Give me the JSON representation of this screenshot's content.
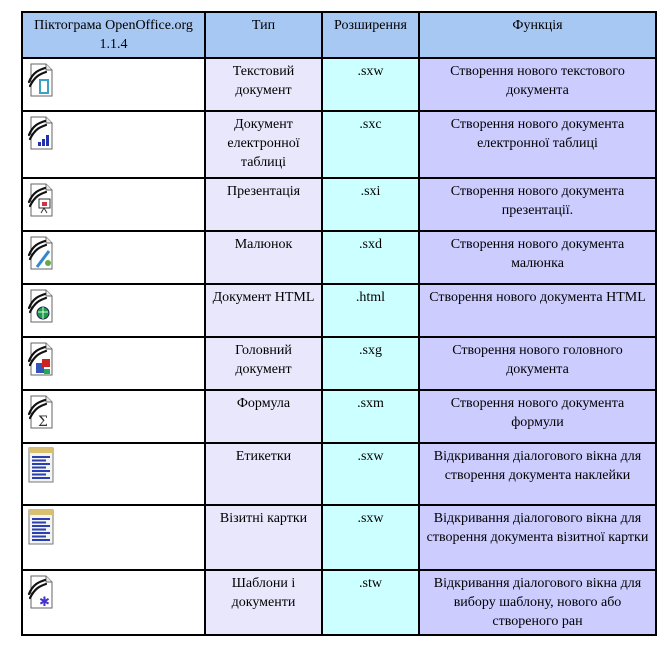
{
  "table": {
    "headers": [
      "Піктограма OpenOffice.org 1.1.4",
      "Тип",
      "Розширення",
      "Функція"
    ],
    "rows": [
      {
        "icon": "text-document-icon",
        "type": "Текстовий документ",
        "ext": ".sxw",
        "func": "Створення нового текстового документа",
        "accent": "#3aa0c8"
      },
      {
        "icon": "spreadsheet-icon",
        "type": "Документ електронної таблиці",
        "ext": ".sxc",
        "func": "Створення нового документа електронної таблиці",
        "accent": "#2233aa"
      },
      {
        "icon": "presentation-icon",
        "type": "Презентація",
        "ext": ".sxi",
        "func": "Створення нового документа презентації.",
        "accent": "#cc3344"
      },
      {
        "icon": "drawing-icon",
        "type": "Малюнок",
        "ext": ".sxd",
        "func": "Створення нового документа малюнка",
        "accent": "#3388cc"
      },
      {
        "icon": "html-document-icon",
        "type": "Документ HTML",
        "ext": ".html",
        "func": "Створення нового документа HTML",
        "accent": "#229944"
      },
      {
        "icon": "master-document-icon",
        "type": "Головний документ",
        "ext": ".sxg",
        "func": "Створення нового головного документа",
        "accent": "#cc2222"
      },
      {
        "icon": "formula-icon",
        "type": "Формула",
        "ext": ".sxm",
        "func": "Створення нового документа формули",
        "accent": "#333333"
      },
      {
        "icon": "labels-icon",
        "type": "Етикетки",
        "ext": ".sxw",
        "func": "Відкривання діалогового вікна для створення документа наклейки",
        "accent": "#2a3fb0"
      },
      {
        "icon": "business-cards-icon",
        "type": "Візитні картки",
        "ext": ".sxw",
        "func": "Відкривання діалогового вікна для створення документа візитної картки",
        "accent": "#2a3fb0"
      },
      {
        "icon": "templates-icon",
        "type": "Шаблони і документи",
        "ext": ".stw",
        "func": "Відкривання діалогового вікна для вибору шаблону, нового або створеного ран",
        "accent": "#4433cc"
      }
    ]
  }
}
